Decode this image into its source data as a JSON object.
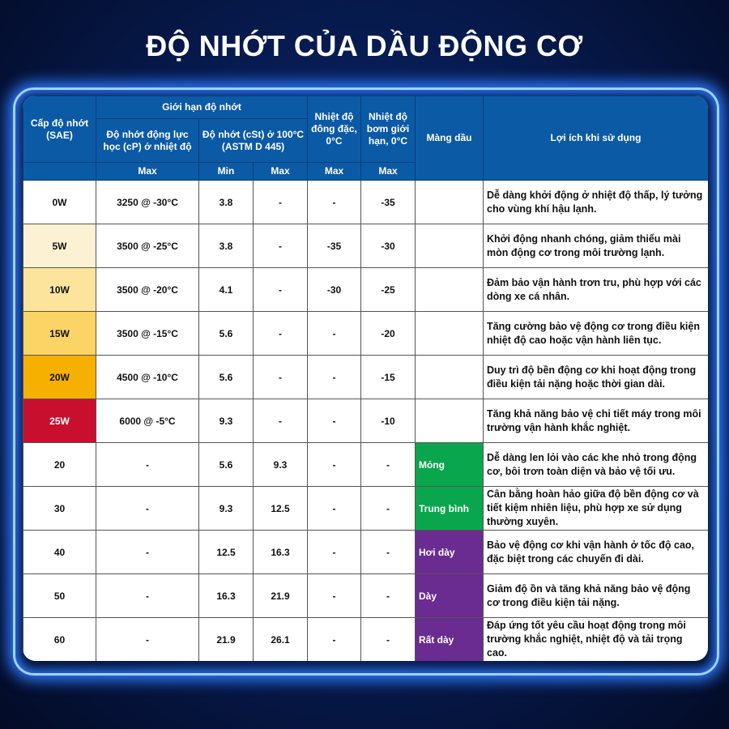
{
  "title": "ĐỘ NHỚT CỦA DẦU ĐỘNG CƠ",
  "header": {
    "grade": "Cấp độ nhớt (SAE)",
    "limits": "Giới hạn độ nhớt",
    "dynamic": "Độ nhớt động lực học (cP) ở nhiệt độ",
    "kinematic": "Độ nhớt (cSt) ở 100°C (ASTM D 445)",
    "pour": "Nhiệt độ đông đặc, 0°C",
    "pump": "Nhiệt độ bơm giới hạn, 0°C",
    "film": "Màng dầu",
    "benefit": "Lợi ích khi sử dụng",
    "sub": [
      "Max",
      "Min",
      "Max",
      "Max",
      "Max"
    ]
  },
  "colors": {
    "header": "#0b5aa6",
    "thin": "#0aa64e",
    "thick": "#6a2c91"
  },
  "rows": [
    {
      "grade": "0W",
      "dyn": "3250 @ -30°C",
      "min": "3.8",
      "max": "-",
      "pour": "-",
      "pump": "-35",
      "film": "",
      "benefit": "Dễ dàng khởi động ở nhiệt độ thấp, lý tưởng cho vùng khí hậu lạnh.",
      "bg": "#ffffff",
      "fg": "#111111",
      "filmbg": "#ffffff"
    },
    {
      "grade": "5W",
      "dyn": "3500 @ -25°C",
      "min": "3.8",
      "max": "-",
      "pour": "-35",
      "pump": "-30",
      "film": "",
      "benefit": "Khởi động nhanh chóng, giảm thiểu mài mòn động cơ trong môi trường lạnh.",
      "bg": "#fdf1d3",
      "fg": "#111111",
      "filmbg": "#ffffff"
    },
    {
      "grade": "10W",
      "dyn": "3500 @ -20°C",
      "min": "4.1",
      "max": "-",
      "pour": "-30",
      "pump": "-25",
      "film": "",
      "benefit": "Đảm bảo vận hành trơn tru, phù hợp với các dòng xe cá nhân.",
      "bg": "#fde49c",
      "fg": "#111111",
      "filmbg": "#ffffff"
    },
    {
      "grade": "15W",
      "dyn": "3500 @ -15°C",
      "min": "5.6",
      "max": "-",
      "pour": "-",
      "pump": "-20",
      "film": "",
      "benefit": "Tăng cường bảo vệ động cơ trong điều kiện nhiệt độ cao hoặc vận hành liên tục.",
      "bg": "#fcd465",
      "fg": "#111111",
      "filmbg": "#ffffff"
    },
    {
      "grade": "20W",
      "dyn": "4500 @ -10°C",
      "min": "5.6",
      "max": "-",
      "pour": "-",
      "pump": "-15",
      "film": "",
      "benefit": "Duy trì độ bền động cơ khi hoạt động trong điều kiện tải nặng hoặc thời gian dài.",
      "bg": "#f5b000",
      "fg": "#111111",
      "filmbg": "#ffffff"
    },
    {
      "grade": "25W",
      "dyn": "6000 @ -5°C",
      "min": "9.3",
      "max": "-",
      "pour": "-",
      "pump": "-10",
      "film": "",
      "benefit": "Tăng khả năng bảo vệ chi tiết máy trong môi trường vận hành khắc nghiệt.",
      "bg": "#c8102e",
      "fg": "#ffffff",
      "filmbg": "#ffffff"
    },
    {
      "grade": "20",
      "dyn": "-",
      "min": "5.6",
      "max": "9.3",
      "pour": "-",
      "pump": "-",
      "film": "Mỏng",
      "benefit": "Dễ dàng len lỏi vào các khe nhỏ trong động cơ, bôi trơn toàn diện và bảo vệ tối ưu.",
      "bg": "#ffffff",
      "fg": "#111111",
      "filmbg": "#0aa64e"
    },
    {
      "grade": "30",
      "dyn": "-",
      "min": "9.3",
      "max": "12.5",
      "pour": "-",
      "pump": "-",
      "film": "Trung bình",
      "benefit": "Cân bằng hoàn hảo giữa độ bền động cơ và tiết kiệm nhiên liệu, phù hợp xe sử dụng thường xuyên.",
      "bg": "#ffffff",
      "fg": "#111111",
      "filmbg": "#0aa64e"
    },
    {
      "grade": "40",
      "dyn": "-",
      "min": "12.5",
      "max": "16.3",
      "pour": "-",
      "pump": "-",
      "film": "Hơi dày",
      "benefit": "Bảo vệ động cơ khi vận hành ở tốc độ cao, đặc biệt trong các chuyến đi dài.",
      "bg": "#ffffff",
      "fg": "#111111",
      "filmbg": "#6a2c91"
    },
    {
      "grade": "50",
      "dyn": "-",
      "min": "16.3",
      "max": "21.9",
      "pour": "-",
      "pump": "-",
      "film": "Dày",
      "benefit": "Giảm độ ồn và tăng khả năng bảo vệ động cơ trong điều kiện tải nặng.",
      "bg": "#ffffff",
      "fg": "#111111",
      "filmbg": "#6a2c91"
    },
    {
      "grade": "60",
      "dyn": "-",
      "min": "21.9",
      "max": "26.1",
      "pour": "-",
      "pump": "-",
      "film": "Rất dày",
      "benefit": "Đáp ứng tốt yêu cầu hoạt động trong môi trường khắc nghiệt, nhiệt độ và tải trọng cao.",
      "bg": "#ffffff",
      "fg": "#111111",
      "filmbg": "#6a2c91"
    }
  ]
}
